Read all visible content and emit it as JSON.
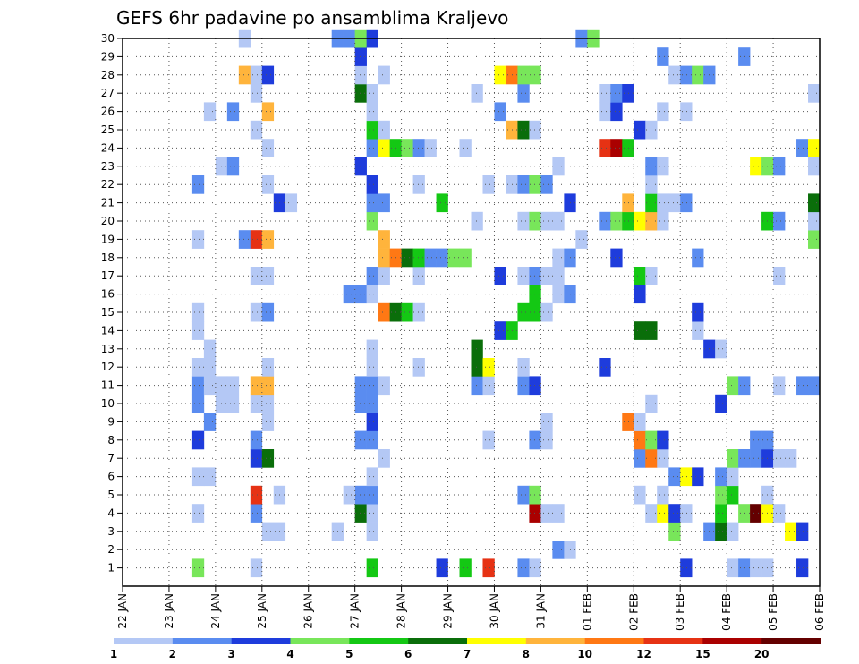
{
  "chart_data": {
    "type": "heatmap",
    "title": "GEFS 6hr padavine po ansamblima Kraljevo",
    "xlabel": "",
    "ylabel": "",
    "x_tick_labels": [
      "22 JAN",
      "23 JAN",
      "24 JAN",
      "25 JAN",
      "26 JAN",
      "27 JAN",
      "28 JAN",
      "29 JAN",
      "30 JAN",
      "31 JAN",
      "01 FEB",
      "02 FEB",
      "03 FEB",
      "04 FEB",
      "05 FEB",
      "06 FEB"
    ],
    "y_tick_labels": [
      "1",
      "2",
      "3",
      "4",
      "5",
      "6",
      "7",
      "8",
      "9",
      "10",
      "11",
      "12",
      "13",
      "14",
      "15",
      "16",
      "17",
      "18",
      "19",
      "20",
      "21",
      "22",
      "23",
      "24",
      "25",
      "26",
      "27",
      "28",
      "29",
      "30"
    ],
    "y_range": [
      0,
      30
    ],
    "steps_per_day": 4,
    "time_steps": 60,
    "grid": "dotted",
    "color_scale": {
      "labels": [
        "1",
        "2",
        "3",
        "4",
        "5",
        "6",
        "7",
        "8",
        "10",
        "12",
        "15",
        "20"
      ],
      "colors": [
        "#b4c8f5",
        "#5a8cf0",
        "#1e3cdc",
        "#78e65a",
        "#14c814",
        "#0a6e0a",
        "#ffff00",
        "#ffb43c",
        "#ff7814",
        "#e63214",
        "#aa0000",
        "#640000"
      ]
    },
    "cells": [
      [
        1,
        21,
        "#14c814"
      ],
      [
        1,
        27,
        "#1e3cdc"
      ],
      [
        1,
        29,
        "#14c814"
      ],
      [
        1,
        31,
        "#e63214"
      ],
      [
        1,
        34,
        "#5a8cf0"
      ],
      [
        1,
        35,
        "#b4c8f5"
      ],
      [
        1,
        48,
        "#1e3cdc"
      ],
      [
        1,
        52,
        "#b4c8f5"
      ],
      [
        1,
        53,
        "#5a8cf0"
      ],
      [
        1,
        54,
        "#b4c8f5"
      ],
      [
        1,
        55,
        "#b4c8f5"
      ],
      [
        1,
        58,
        "#1e3cdc"
      ],
      [
        1,
        6,
        "#78e65a"
      ],
      [
        1,
        11,
        "#b4c8f5"
      ],
      [
        2,
        37,
        "#5a8cf0"
      ],
      [
        2,
        38,
        "#b4c8f5"
      ],
      [
        3,
        12,
        "#b4c8f5"
      ],
      [
        3,
        13,
        "#b4c8f5"
      ],
      [
        3,
        21,
        "#b4c8f5"
      ],
      [
        3,
        47,
        "#78e65a"
      ],
      [
        3,
        50,
        "#5a8cf0"
      ],
      [
        3,
        51,
        "#0a6e0a"
      ],
      [
        3,
        52,
        "#b4c8f5"
      ],
      [
        3,
        57,
        "#ffff00"
      ],
      [
        3,
        58,
        "#1e3cdc"
      ],
      [
        3,
        18,
        "#b4c8f5"
      ],
      [
        4,
        6,
        "#b4c8f5"
      ],
      [
        4,
        11,
        "#5a8cf0"
      ],
      [
        4,
        20,
        "#0a6e0a"
      ],
      [
        4,
        21,
        "#b4c8f5"
      ],
      [
        4,
        35,
        "#aa0000"
      ],
      [
        4,
        36,
        "#b4c8f5"
      ],
      [
        4,
        37,
        "#b4c8f5"
      ],
      [
        4,
        45,
        "#b4c8f5"
      ],
      [
        4,
        46,
        "#ffff00"
      ],
      [
        4,
        47,
        "#1e3cdc"
      ],
      [
        4,
        48,
        "#b4c8f5"
      ],
      [
        4,
        51,
        "#14c814"
      ],
      [
        4,
        53,
        "#78e65a"
      ],
      [
        4,
        54,
        "#640000"
      ],
      [
        4,
        55,
        "#ffff00"
      ],
      [
        4,
        56,
        "#b4c8f5"
      ],
      [
        5,
        11,
        "#e63214"
      ],
      [
        5,
        13,
        "#b4c8f5"
      ],
      [
        5,
        20,
        "#5a8cf0"
      ],
      [
        5,
        21,
        "#5a8cf0"
      ],
      [
        5,
        34,
        "#5a8cf0"
      ],
      [
        5,
        35,
        "#78e65a"
      ],
      [
        5,
        44,
        "#b4c8f5"
      ],
      [
        5,
        46,
        "#b4c8f5"
      ],
      [
        5,
        51,
        "#78e65a"
      ],
      [
        5,
        52,
        "#14c814"
      ],
      [
        5,
        55,
        "#b4c8f5"
      ],
      [
        5,
        19,
        "#b4c8f5"
      ],
      [
        6,
        6,
        "#b4c8f5"
      ],
      [
        6,
        7,
        "#b4c8f5"
      ],
      [
        6,
        21,
        "#b4c8f5"
      ],
      [
        6,
        47,
        "#5a8cf0"
      ],
      [
        6,
        48,
        "#ffff00"
      ],
      [
        6,
        49,
        "#1e3cdc"
      ],
      [
        6,
        51,
        "#5a8cf0"
      ],
      [
        6,
        52,
        "#b4c8f5"
      ],
      [
        7,
        11,
        "#1e3cdc"
      ],
      [
        7,
        12,
        "#0a6e0a"
      ],
      [
        7,
        22,
        "#b4c8f5"
      ],
      [
        7,
        44,
        "#5a8cf0"
      ],
      [
        7,
        45,
        "#ff7814"
      ],
      [
        7,
        46,
        "#b4c8f5"
      ],
      [
        7,
        52,
        "#78e65a"
      ],
      [
        7,
        53,
        "#5a8cf0"
      ],
      [
        7,
        54,
        "#5a8cf0"
      ],
      [
        7,
        55,
        "#1e3cdc"
      ],
      [
        7,
        56,
        "#b4c8f5"
      ],
      [
        7,
        57,
        "#b4c8f5"
      ],
      [
        8,
        6,
        "#1e3cdc"
      ],
      [
        8,
        11,
        "#5a8cf0"
      ],
      [
        8,
        20,
        "#5a8cf0"
      ],
      [
        8,
        21,
        "#5a8cf0"
      ],
      [
        8,
        31,
        "#b4c8f5"
      ],
      [
        8,
        35,
        "#5a8cf0"
      ],
      [
        8,
        36,
        "#b4c8f5"
      ],
      [
        8,
        44,
        "#ff7814"
      ],
      [
        8,
        45,
        "#78e65a"
      ],
      [
        8,
        46,
        "#1e3cdc"
      ],
      [
        8,
        54,
        "#5a8cf0"
      ],
      [
        8,
        55,
        "#5a8cf0"
      ],
      [
        9,
        7,
        "#5a8cf0"
      ],
      [
        9,
        12,
        "#b4c8f5"
      ],
      [
        9,
        21,
        "#1e3cdc"
      ],
      [
        9,
        36,
        "#b4c8f5"
      ],
      [
        9,
        43,
        "#ff7814"
      ],
      [
        9,
        44,
        "#b4c8f5"
      ],
      [
        10,
        6,
        "#5a8cf0"
      ],
      [
        10,
        8,
        "#b4c8f5"
      ],
      [
        10,
        9,
        "#b4c8f5"
      ],
      [
        10,
        11,
        "#b4c8f5"
      ],
      [
        10,
        12,
        "#b4c8f5"
      ],
      [
        10,
        20,
        "#5a8cf0"
      ],
      [
        10,
        21,
        "#5a8cf0"
      ],
      [
        10,
        45,
        "#b4c8f5"
      ],
      [
        10,
        51,
        "#1e3cdc"
      ],
      [
        11,
        6,
        "#5a8cf0"
      ],
      [
        11,
        7,
        "#b4c8f5"
      ],
      [
        11,
        8,
        "#b4c8f5"
      ],
      [
        11,
        9,
        "#b4c8f5"
      ],
      [
        11,
        11,
        "#ffb43c"
      ],
      [
        11,
        12,
        "#ffb43c"
      ],
      [
        11,
        20,
        "#5a8cf0"
      ],
      [
        11,
        21,
        "#5a8cf0"
      ],
      [
        11,
        22,
        "#b4c8f5"
      ],
      [
        11,
        30,
        "#5a8cf0"
      ],
      [
        11,
        31,
        "#b4c8f5"
      ],
      [
        11,
        34,
        "#5a8cf0"
      ],
      [
        11,
        35,
        "#1e3cdc"
      ],
      [
        11,
        52,
        "#78e65a"
      ],
      [
        11,
        53,
        "#5a8cf0"
      ],
      [
        11,
        56,
        "#b4c8f5"
      ],
      [
        11,
        58,
        "#5a8cf0"
      ],
      [
        11,
        59,
        "#5a8cf0"
      ],
      [
        12,
        6,
        "#b4c8f5"
      ],
      [
        12,
        7,
        "#b4c8f5"
      ],
      [
        12,
        12,
        "#b4c8f5"
      ],
      [
        12,
        21,
        "#b4c8f5"
      ],
      [
        12,
        25,
        "#b4c8f5"
      ],
      [
        12,
        30,
        "#0a6e0a"
      ],
      [
        12,
        31,
        "#ffff00"
      ],
      [
        12,
        34,
        "#b4c8f5"
      ],
      [
        12,
        41,
        "#1e3cdc"
      ],
      [
        13,
        7,
        "#b4c8f5"
      ],
      [
        13,
        21,
        "#b4c8f5"
      ],
      [
        13,
        30,
        "#0a6e0a"
      ],
      [
        13,
        50,
        "#1e3cdc"
      ],
      [
        13,
        51,
        "#b4c8f5"
      ],
      [
        14,
        6,
        "#b4c8f5"
      ],
      [
        14,
        32,
        "#1e3cdc"
      ],
      [
        14,
        33,
        "#14c814"
      ],
      [
        14,
        44,
        "#0a6e0a"
      ],
      [
        14,
        45,
        "#0a6e0a"
      ],
      [
        14,
        49,
        "#b4c8f5"
      ],
      [
        15,
        6,
        "#b4c8f5"
      ],
      [
        15,
        11,
        "#b4c8f5"
      ],
      [
        15,
        12,
        "#5a8cf0"
      ],
      [
        15,
        22,
        "#ff7814"
      ],
      [
        15,
        23,
        "#0a6e0a"
      ],
      [
        15,
        24,
        "#14c814"
      ],
      [
        15,
        25,
        "#b4c8f5"
      ],
      [
        15,
        34,
        "#14c814"
      ],
      [
        15,
        35,
        "#14c814"
      ],
      [
        15,
        36,
        "#b4c8f5"
      ],
      [
        15,
        49,
        "#1e3cdc"
      ],
      [
        16,
        19,
        "#5a8cf0"
      ],
      [
        16,
        20,
        "#5a8cf0"
      ],
      [
        16,
        21,
        "#b4c8f5"
      ],
      [
        16,
        35,
        "#14c814"
      ],
      [
        16,
        37,
        "#b4c8f5"
      ],
      [
        16,
        38,
        "#5a8cf0"
      ],
      [
        16,
        44,
        "#1e3cdc"
      ],
      [
        17,
        11,
        "#b4c8f5"
      ],
      [
        17,
        12,
        "#b4c8f5"
      ],
      [
        17,
        21,
        "#5a8cf0"
      ],
      [
        17,
        22,
        "#b4c8f5"
      ],
      [
        17,
        25,
        "#b4c8f5"
      ],
      [
        17,
        32,
        "#1e3cdc"
      ],
      [
        17,
        34,
        "#b4c8f5"
      ],
      [
        17,
        35,
        "#5a8cf0"
      ],
      [
        17,
        36,
        "#b4c8f5"
      ],
      [
        17,
        37,
        "#b4c8f5"
      ],
      [
        17,
        44,
        "#14c814"
      ],
      [
        17,
        45,
        "#b4c8f5"
      ],
      [
        17,
        56,
        "#b4c8f5"
      ],
      [
        18,
        22,
        "#ffb43c"
      ],
      [
        18,
        23,
        "#ff7814"
      ],
      [
        18,
        24,
        "#0a6e0a"
      ],
      [
        18,
        25,
        "#14c814"
      ],
      [
        18,
        26,
        "#5a8cf0"
      ],
      [
        18,
        27,
        "#5a8cf0"
      ],
      [
        18,
        28,
        "#78e65a"
      ],
      [
        18,
        29,
        "#78e65a"
      ],
      [
        18,
        37,
        "#b4c8f5"
      ],
      [
        18,
        38,
        "#5a8cf0"
      ],
      [
        18,
        42,
        "#1e3cdc"
      ],
      [
        18,
        49,
        "#5a8cf0"
      ],
      [
        19,
        6,
        "#b4c8f5"
      ],
      [
        19,
        10,
        "#5a8cf0"
      ],
      [
        19,
        11,
        "#e63214"
      ],
      [
        19,
        12,
        "#ffb43c"
      ],
      [
        19,
        22,
        "#ffb43c"
      ],
      [
        19,
        39,
        "#b4c8f5"
      ],
      [
        19,
        59,
        "#78e65a"
      ],
      [
        20,
        21,
        "#78e65a"
      ],
      [
        20,
        30,
        "#b4c8f5"
      ],
      [
        20,
        34,
        "#b4c8f5"
      ],
      [
        20,
        35,
        "#78e65a"
      ],
      [
        20,
        36,
        "#b4c8f5"
      ],
      [
        20,
        37,
        "#b4c8f5"
      ],
      [
        20,
        41,
        "#5a8cf0"
      ],
      [
        20,
        42,
        "#78e65a"
      ],
      [
        20,
        43,
        "#14c814"
      ],
      [
        20,
        44,
        "#ffff00"
      ],
      [
        20,
        45,
        "#ffb43c"
      ],
      [
        20,
        46,
        "#b4c8f5"
      ],
      [
        20,
        55,
        "#14c814"
      ],
      [
        20,
        56,
        "#5a8cf0"
      ],
      [
        20,
        59,
        "#b4c8f5"
      ],
      [
        21,
        13,
        "#1e3cdc"
      ],
      [
        21,
        14,
        "#b4c8f5"
      ],
      [
        21,
        21,
        "#5a8cf0"
      ],
      [
        21,
        22,
        "#5a8cf0"
      ],
      [
        21,
        27,
        "#14c814"
      ],
      [
        21,
        38,
        "#1e3cdc"
      ],
      [
        21,
        43,
        "#ffb43c"
      ],
      [
        21,
        45,
        "#14c814"
      ],
      [
        21,
        46,
        "#b4c8f5"
      ],
      [
        21,
        47,
        "#b4c8f5"
      ],
      [
        21,
        48,
        "#5a8cf0"
      ],
      [
        21,
        59,
        "#0a6e0a"
      ],
      [
        22,
        6,
        "#5a8cf0"
      ],
      [
        22,
        12,
        "#b4c8f5"
      ],
      [
        22,
        21,
        "#1e3cdc"
      ],
      [
        22,
        25,
        "#b4c8f5"
      ],
      [
        22,
        31,
        "#b4c8f5"
      ],
      [
        22,
        33,
        "#b4c8f5"
      ],
      [
        22,
        34,
        "#5a8cf0"
      ],
      [
        22,
        35,
        "#78e65a"
      ],
      [
        22,
        36,
        "#5a8cf0"
      ],
      [
        22,
        45,
        "#b4c8f5"
      ],
      [
        23,
        8,
        "#b4c8f5"
      ],
      [
        23,
        9,
        "#5a8cf0"
      ],
      [
        23,
        20,
        "#1e3cdc"
      ],
      [
        23,
        37,
        "#b4c8f5"
      ],
      [
        23,
        45,
        "#5a8cf0"
      ],
      [
        23,
        46,
        "#b4c8f5"
      ],
      [
        23,
        54,
        "#ffff00"
      ],
      [
        23,
        55,
        "#78e65a"
      ],
      [
        23,
        56,
        "#5a8cf0"
      ],
      [
        23,
        59,
        "#b4c8f5"
      ],
      [
        24,
        12,
        "#b4c8f5"
      ],
      [
        24,
        21,
        "#5a8cf0"
      ],
      [
        24,
        22,
        "#ffff00"
      ],
      [
        24,
        23,
        "#14c814"
      ],
      [
        24,
        24,
        "#78e65a"
      ],
      [
        24,
        25,
        "#5a8cf0"
      ],
      [
        24,
        26,
        "#b4c8f5"
      ],
      [
        24,
        29,
        "#b4c8f5"
      ],
      [
        24,
        41,
        "#e63214"
      ],
      [
        24,
        42,
        "#aa0000"
      ],
      [
        24,
        43,
        "#14c814"
      ],
      [
        24,
        58,
        "#5a8cf0"
      ],
      [
        24,
        59,
        "#ffff00"
      ],
      [
        25,
        11,
        "#b4c8f5"
      ],
      [
        25,
        21,
        "#14c814"
      ],
      [
        25,
        22,
        "#b4c8f5"
      ],
      [
        25,
        33,
        "#ffb43c"
      ],
      [
        25,
        34,
        "#0a6e0a"
      ],
      [
        25,
        35,
        "#b4c8f5"
      ],
      [
        25,
        44,
        "#1e3cdc"
      ],
      [
        25,
        45,
        "#b4c8f5"
      ],
      [
        26,
        7,
        "#b4c8f5"
      ],
      [
        26,
        9,
        "#5a8cf0"
      ],
      [
        26,
        12,
        "#ffb43c"
      ],
      [
        26,
        21,
        "#b4c8f5"
      ],
      [
        26,
        32,
        "#5a8cf0"
      ],
      [
        26,
        41,
        "#b4c8f5"
      ],
      [
        26,
        42,
        "#1e3cdc"
      ],
      [
        26,
        46,
        "#b4c8f5"
      ],
      [
        26,
        48,
        "#b4c8f5"
      ],
      [
        27,
        11,
        "#b4c8f5"
      ],
      [
        27,
        20,
        "#0a6e0a"
      ],
      [
        27,
        21,
        "#b4c8f5"
      ],
      [
        27,
        30,
        "#b4c8f5"
      ],
      [
        27,
        34,
        "#5a8cf0"
      ],
      [
        27,
        41,
        "#b4c8f5"
      ],
      [
        27,
        42,
        "#5a8cf0"
      ],
      [
        27,
        43,
        "#1e3cdc"
      ],
      [
        27,
        59,
        "#b4c8f5"
      ],
      [
        28,
        10,
        "#ffb43c"
      ],
      [
        28,
        11,
        "#b4c8f5"
      ],
      [
        28,
        12,
        "#1e3cdc"
      ],
      [
        28,
        20,
        "#b4c8f5"
      ],
      [
        28,
        22,
        "#b4c8f5"
      ],
      [
        28,
        32,
        "#ffff00"
      ],
      [
        28,
        33,
        "#ff7814"
      ],
      [
        28,
        34,
        "#78e65a"
      ],
      [
        28,
        35,
        "#78e65a"
      ],
      [
        28,
        47,
        "#b4c8f5"
      ],
      [
        28,
        48,
        "#5a8cf0"
      ],
      [
        28,
        49,
        "#78e65a"
      ],
      [
        28,
        50,
        "#5a8cf0"
      ],
      [
        29,
        20,
        "#1e3cdc"
      ],
      [
        29,
        46,
        "#5a8cf0"
      ],
      [
        29,
        53,
        "#5a8cf0"
      ],
      [
        30,
        10,
        "#b4c8f5"
      ],
      [
        30,
        18,
        "#5a8cf0"
      ],
      [
        30,
        19,
        "#5a8cf0"
      ],
      [
        30,
        20,
        "#78e65a"
      ],
      [
        30,
        21,
        "#1e3cdc"
      ],
      [
        30,
        39,
        "#5a8cf0"
      ],
      [
        30,
        40,
        "#78e65a"
      ]
    ]
  }
}
